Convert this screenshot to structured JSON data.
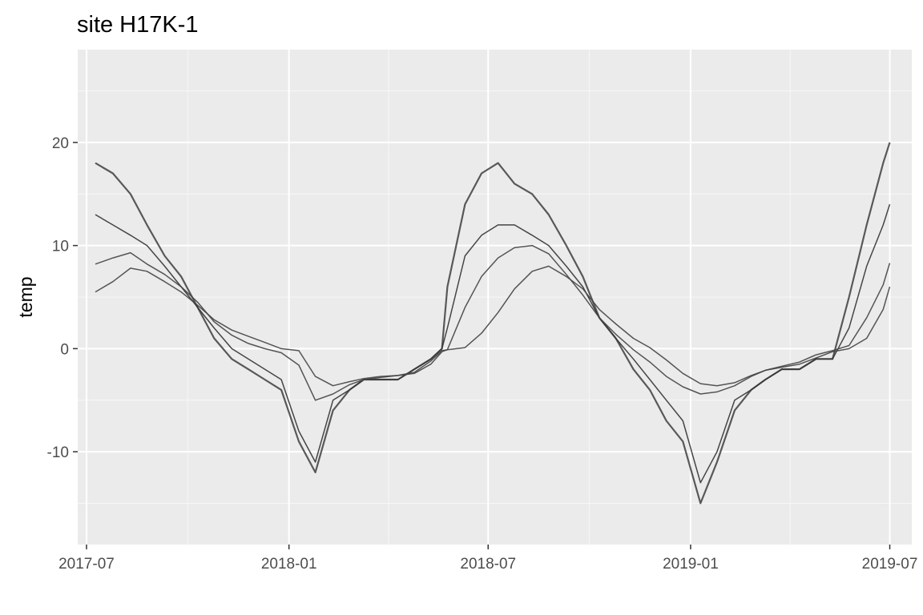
{
  "chart_data": {
    "type": "line",
    "title": "site H17K-1",
    "xlabel": "",
    "ylabel": "temp",
    "x_ticks": [
      "2017-07",
      "2018-01",
      "2018-07",
      "2019-01",
      "2019-07"
    ],
    "y_ticks": [
      -10,
      0,
      10,
      20
    ],
    "xlim": [
      "2017-06-23",
      "2019-07-21"
    ],
    "ylim": [
      -19,
      29
    ],
    "grid": true,
    "background": "#ebebeb",
    "series": [
      {
        "x": [
          "2017-07-09",
          "2017-07-25",
          "2017-08-10",
          "2017-08-25",
          "2017-09-10",
          "2017-09-25",
          "2017-10-10",
          "2017-10-25",
          "2017-11-10",
          "2017-11-25",
          "2017-12-10",
          "2017-12-25",
          "2018-01-10",
          "2018-01-25",
          "2018-02-10",
          "2018-02-25",
          "2018-03-10",
          "2018-03-25",
          "2018-04-10",
          "2018-04-25",
          "2018-05-10",
          "2018-05-20",
          "2018-05-25",
          "2018-06-10",
          "2018-06-25",
          "2018-07-10",
          "2018-07-25",
          "2018-08-10",
          "2018-08-25",
          "2018-09-10",
          "2018-09-25",
          "2018-10-10",
          "2018-10-25",
          "2018-11-10",
          "2018-11-25",
          "2018-12-10",
          "2018-12-25",
          "2019-01-10",
          "2019-01-25",
          "2019-02-10",
          "2019-02-25",
          "2019-03-10",
          "2019-03-25",
          "2019-04-10",
          "2019-04-25",
          "2019-05-10",
          "2019-05-25",
          "2019-06-10",
          "2019-06-25",
          "2019-07-01"
        ],
        "values": [
          18,
          17,
          15,
          12,
          9,
          7,
          4,
          1,
          -1,
          -2,
          -3,
          -4,
          -9,
          -12,
          -6,
          -4,
          -3,
          -3,
          -3,
          -2,
          -1,
          0,
          6,
          14,
          17,
          18,
          16,
          15,
          13,
          10,
          7,
          3,
          1,
          -2,
          -4,
          -7,
          -9,
          -15,
          -11,
          -6,
          -4,
          -3,
          -2,
          -2,
          -1,
          -1,
          5,
          12,
          18,
          20
        ]
      },
      {
        "x": [
          "2017-07-09",
          "2017-07-25",
          "2017-08-10",
          "2017-08-25",
          "2017-09-10",
          "2017-09-25",
          "2017-10-10",
          "2017-10-25",
          "2017-11-10",
          "2017-11-25",
          "2017-12-10",
          "2017-12-25",
          "2018-01-10",
          "2018-01-25",
          "2018-02-10",
          "2018-02-25",
          "2018-03-10",
          "2018-03-25",
          "2018-04-10",
          "2018-04-25",
          "2018-05-10",
          "2018-05-20",
          "2018-05-25",
          "2018-06-10",
          "2018-06-25",
          "2018-07-10",
          "2018-07-25",
          "2018-08-10",
          "2018-08-25",
          "2018-09-10",
          "2018-09-25",
          "2018-10-10",
          "2018-10-25",
          "2018-11-10",
          "2018-11-25",
          "2018-12-10",
          "2018-12-25",
          "2019-01-10",
          "2019-01-25",
          "2019-02-10",
          "2019-02-25",
          "2019-03-10",
          "2019-03-25",
          "2019-04-10",
          "2019-04-25",
          "2019-05-10",
          "2019-05-25",
          "2019-06-10",
          "2019-06-25",
          "2019-07-01"
        ],
        "values": [
          13,
          12,
          11,
          10,
          8,
          6,
          4,
          2,
          0,
          -1,
          -2,
          -3,
          -8,
          -11,
          -5,
          -4,
          -3,
          -3,
          -3,
          -2,
          -1,
          0,
          2,
          9,
          11,
          12,
          12,
          11,
          10,
          8,
          6,
          3,
          1,
          -1,
          -3,
          -5,
          -7,
          -13,
          -10,
          -5,
          -4,
          -3,
          -2,
          -2,
          -1,
          -1,
          2,
          8,
          12,
          14
        ]
      },
      {
        "x": [
          "2017-07-09",
          "2017-07-25",
          "2017-08-10",
          "2017-08-25",
          "2017-09-10",
          "2017-09-25",
          "2017-10-10",
          "2017-10-25",
          "2017-11-10",
          "2017-11-25",
          "2017-12-10",
          "2017-12-25",
          "2018-01-10",
          "2018-01-25",
          "2018-02-10",
          "2018-02-25",
          "2018-03-10",
          "2018-03-25",
          "2018-04-10",
          "2018-04-25",
          "2018-05-10",
          "2018-05-20",
          "2018-05-25",
          "2018-06-10",
          "2018-06-25",
          "2018-07-10",
          "2018-07-25",
          "2018-08-10",
          "2018-08-25",
          "2018-09-10",
          "2018-09-25",
          "2018-10-10",
          "2018-10-25",
          "2018-11-10",
          "2018-11-25",
          "2018-12-10",
          "2018-12-25",
          "2019-01-10",
          "2019-01-25",
          "2019-02-10",
          "2019-02-25",
          "2019-03-10",
          "2019-03-25",
          "2019-04-10",
          "2019-04-25",
          "2019-05-10",
          "2019-05-25",
          "2019-06-10",
          "2019-06-25",
          "2019-07-01"
        ],
        "values": [
          8.2,
          8.8,
          9.3,
          8.2,
          7.2,
          6.0,
          4.5,
          2.6,
          1.3,
          0.5,
          0.0,
          -0.4,
          -1.6,
          -5.0,
          -4.4,
          -3.5,
          -3.0,
          -2.8,
          -2.6,
          -2.3,
          -1.2,
          -0.2,
          -0.1,
          4.0,
          7.0,
          8.8,
          9.8,
          10.0,
          9.2,
          7.2,
          5.2,
          3.0,
          1.4,
          -0.1,
          -1.3,
          -2.7,
          -3.7,
          -4.4,
          -4.2,
          -3.6,
          -2.7,
          -2.1,
          -1.7,
          -1.3,
          -0.6,
          -0.2,
          0.3,
          3.0,
          6.2,
          8.3
        ]
      },
      {
        "x": [
          "2017-07-09",
          "2017-07-25",
          "2017-08-10",
          "2017-08-25",
          "2017-09-10",
          "2017-09-25",
          "2017-10-10",
          "2017-10-25",
          "2017-11-10",
          "2017-11-25",
          "2017-12-10",
          "2017-12-25",
          "2018-01-10",
          "2018-01-25",
          "2018-02-10",
          "2018-02-25",
          "2018-03-10",
          "2018-03-25",
          "2018-04-10",
          "2018-04-25",
          "2018-05-10",
          "2018-05-20",
          "2018-05-25",
          "2018-06-10",
          "2018-06-25",
          "2018-07-10",
          "2018-07-25",
          "2018-08-10",
          "2018-08-25",
          "2018-09-10",
          "2018-09-25",
          "2018-10-10",
          "2018-10-25",
          "2018-11-10",
          "2018-11-25",
          "2018-12-10",
          "2018-12-25",
          "2019-01-10",
          "2019-01-25",
          "2019-02-10",
          "2019-02-25",
          "2019-03-10",
          "2019-03-25",
          "2019-04-10",
          "2019-04-25",
          "2019-05-10",
          "2019-05-25",
          "2019-06-10",
          "2019-06-25",
          "2019-07-01"
        ],
        "values": [
          5.5,
          6.5,
          7.8,
          7.5,
          6.5,
          5.5,
          4.2,
          2.8,
          1.8,
          1.2,
          0.6,
          0.0,
          -0.2,
          -2.7,
          -3.6,
          -3.2,
          -2.9,
          -2.7,
          -2.6,
          -2.4,
          -1.5,
          -0.3,
          -0.1,
          0.1,
          1.5,
          3.5,
          5.8,
          7.5,
          8.0,
          7.0,
          5.8,
          3.8,
          2.4,
          1.0,
          0.1,
          -1.1,
          -2.4,
          -3.4,
          -3.6,
          -3.3,
          -2.6,
          -2.1,
          -1.8,
          -1.5,
          -0.9,
          -0.3,
          0.0,
          1.0,
          3.8,
          6.0
        ]
      }
    ]
  }
}
